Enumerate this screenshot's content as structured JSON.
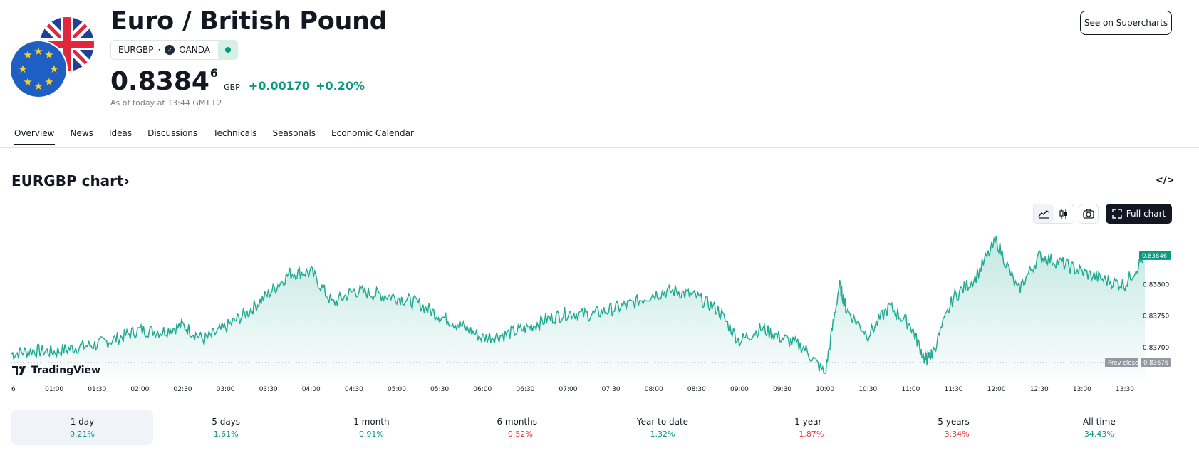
{
  "header": {
    "title": "Euro / British Pound",
    "symbol": "EURGBP",
    "separator": "·",
    "exchange": "OANDA",
    "price_main": "0.8384",
    "price_super": "6",
    "currency": "GBP",
    "change": "+0.00170",
    "change_pct": "+0.20%",
    "as_of": "As of today at 13:44 GMT+2",
    "supercharts_label": "See on Supercharts"
  },
  "tabs": [
    "Overview",
    "News",
    "Ideas",
    "Discussions",
    "Technicals",
    "Seasonals",
    "Economic Calendar"
  ],
  "active_tab": "Overview",
  "chart_section": {
    "title": "EURGBP chart",
    "title_arrow": "›",
    "embed_icon": "</>",
    "full_chart_label": "Full chart",
    "logo_text": "TradingView"
  },
  "toolbar_icons": [
    "area-chart-icon",
    "candles-icon",
    "camera-icon",
    "fullscreen-icon"
  ],
  "colors": {
    "up": "#089981",
    "down": "#f23645",
    "line": "#22ab94",
    "text": "#131722",
    "muted": "#787b86"
  },
  "chart_data": {
    "type": "area",
    "x_ticks": [
      "6",
      "01:00",
      "01:30",
      "02:00",
      "02:30",
      "03:00",
      "03:30",
      "04:00",
      "04:30",
      "05:00",
      "05:30",
      "06:00",
      "06:30",
      "07:00",
      "07:30",
      "08:00",
      "08:30",
      "09:00",
      "09:30",
      "10:00",
      "10:30",
      "11:00",
      "11:30",
      "12:00",
      "12:30",
      "13:00",
      "13:30"
    ],
    "y_ticks": [
      "0.83800",
      "0.83750",
      "0.83700"
    ],
    "ylim": [
      0.8365,
      0.8389
    ],
    "prev_close_label": "Prev close",
    "prev_close_value": "0.83676",
    "last_value_label": "0.83846",
    "series": [
      {
        "x": [
          "00:30",
          "00:45",
          "01:00",
          "01:15",
          "01:30",
          "01:45",
          "02:00",
          "02:15",
          "02:30",
          "02:45",
          "03:00",
          "03:15",
          "03:30",
          "03:45",
          "04:00",
          "04:15",
          "04:30",
          "04:45",
          "05:00",
          "05:15",
          "05:30",
          "05:45",
          "06:00",
          "06:15",
          "06:30",
          "06:45",
          "07:00",
          "07:15",
          "07:30",
          "07:45",
          "08:00",
          "08:15",
          "08:30",
          "08:45",
          "09:00",
          "09:15",
          "09:30",
          "09:45",
          "10:00",
          "10:10",
          "10:15",
          "10:30",
          "10:45",
          "11:00",
          "11:10",
          "11:15",
          "11:30",
          "11:45",
          "12:00",
          "12:15",
          "12:30",
          "12:45",
          "13:00",
          "13:15",
          "13:30",
          "13:44"
        ],
        "values": [
          0.8369,
          0.83695,
          0.83693,
          0.837,
          0.83705,
          0.83715,
          0.83728,
          0.83725,
          0.83735,
          0.83712,
          0.83732,
          0.83755,
          0.83785,
          0.83818,
          0.8382,
          0.8377,
          0.8379,
          0.83785,
          0.8378,
          0.8377,
          0.8375,
          0.83735,
          0.83715,
          0.8372,
          0.8373,
          0.83745,
          0.83755,
          0.83752,
          0.8376,
          0.8377,
          0.83785,
          0.8379,
          0.8378,
          0.8376,
          0.8371,
          0.8373,
          0.83715,
          0.837,
          0.83658,
          0.838,
          0.8376,
          0.8372,
          0.83765,
          0.83735,
          0.8368,
          0.8369,
          0.8378,
          0.8381,
          0.8387,
          0.8379,
          0.83845,
          0.83835,
          0.8382,
          0.83808,
          0.838,
          0.83846
        ]
      }
    ]
  },
  "periods": [
    {
      "label": "1 day",
      "value": "0.21%",
      "dir": "pos"
    },
    {
      "label": "5 days",
      "value": "1.61%",
      "dir": "pos"
    },
    {
      "label": "1 month",
      "value": "0.91%",
      "dir": "pos"
    },
    {
      "label": "6 months",
      "value": "−0.52%",
      "dir": "neg"
    },
    {
      "label": "Year to date",
      "value": "1.32%",
      "dir": "pos"
    },
    {
      "label": "1 year",
      "value": "−1.87%",
      "dir": "neg"
    },
    {
      "label": "5 years",
      "value": "−3.34%",
      "dir": "neg"
    },
    {
      "label": "All time",
      "value": "34.43%",
      "dir": "pos"
    }
  ]
}
